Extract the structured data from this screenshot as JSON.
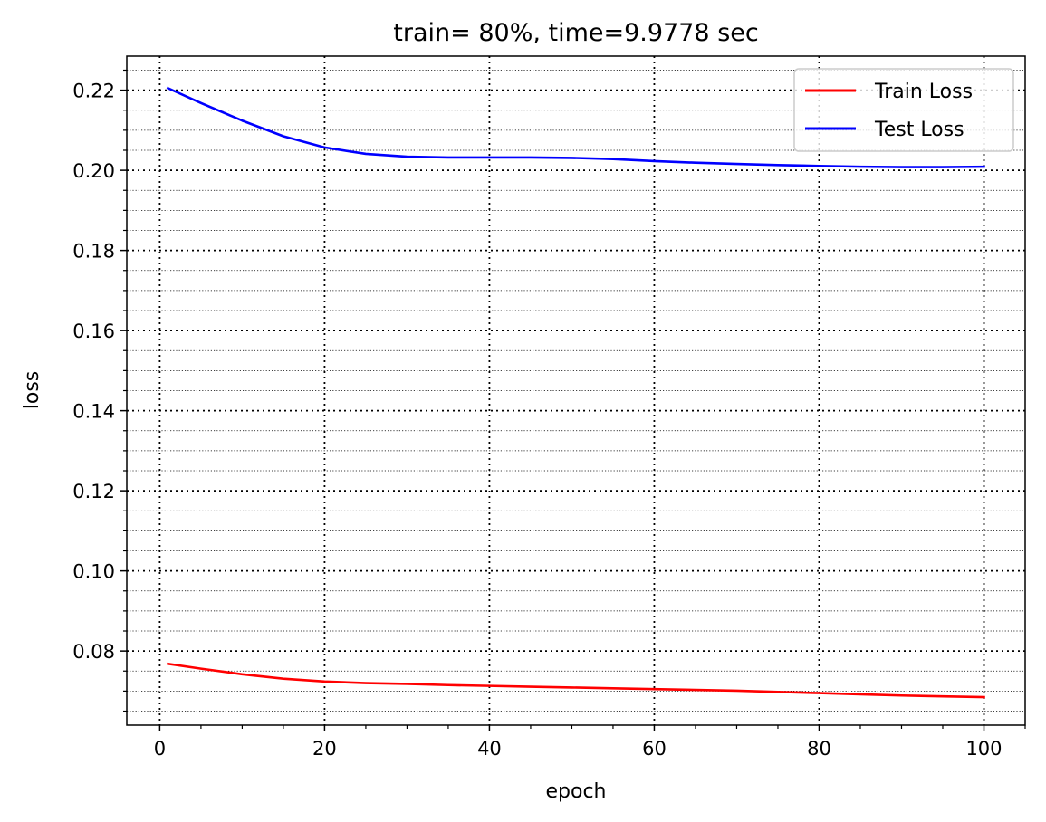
{
  "chart_data": {
    "type": "line",
    "title": "train= 80%, time=9.9778 sec",
    "xlabel": "epoch",
    "ylabel": "loss",
    "xlim": [
      -4,
      105
    ],
    "ylim": [
      0.0615,
      0.2285
    ],
    "x_major_ticks": [
      0,
      20,
      40,
      60,
      80,
      100
    ],
    "x_tick_labels": [
      "0",
      "20",
      "40",
      "60",
      "80",
      "100"
    ],
    "x_minor_step": 5,
    "y_major_ticks": [
      0.08,
      0.1,
      0.12,
      0.14,
      0.16,
      0.18,
      0.2,
      0.22
    ],
    "y_tick_labels": [
      "0.08",
      "0.10",
      "0.12",
      "0.14",
      "0.16",
      "0.18",
      "0.20",
      "0.22"
    ],
    "y_minor_step": 0.005,
    "grid": {
      "major": true,
      "minor": true,
      "style": "dotted"
    },
    "legend_position": "top-right",
    "series": [
      {
        "name": "Train Loss",
        "color": "#ff0000",
        "x": [
          1,
          5,
          10,
          15,
          20,
          25,
          30,
          35,
          40,
          45,
          50,
          55,
          60,
          65,
          70,
          75,
          80,
          85,
          90,
          95,
          100
        ],
        "values": [
          0.0768,
          0.0756,
          0.0742,
          0.0731,
          0.0724,
          0.072,
          0.0718,
          0.0715,
          0.0713,
          0.0711,
          0.0709,
          0.0707,
          0.0705,
          0.0703,
          0.0701,
          0.0698,
          0.0695,
          0.0692,
          0.0689,
          0.0687,
          0.0685
        ]
      },
      {
        "name": "Test Loss",
        "color": "#0000ff",
        "x": [
          1,
          5,
          10,
          15,
          20,
          25,
          30,
          35,
          40,
          45,
          50,
          55,
          60,
          65,
          70,
          75,
          80,
          85,
          90,
          95,
          100
        ],
        "values": [
          0.2205,
          0.2168,
          0.2124,
          0.2085,
          0.2057,
          0.2041,
          0.2034,
          0.2032,
          0.2032,
          0.2032,
          0.2031,
          0.2028,
          0.2023,
          0.2019,
          0.2016,
          0.2013,
          0.2011,
          0.2009,
          0.2008,
          0.2008,
          0.2009
        ]
      }
    ]
  }
}
